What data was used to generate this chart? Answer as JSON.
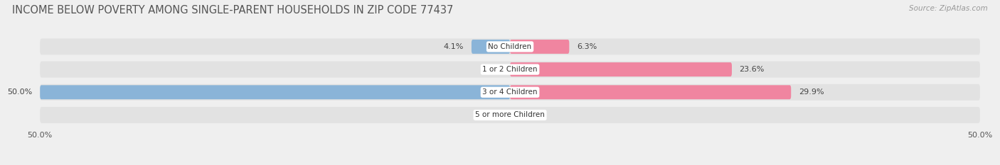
{
  "title": "INCOME BELOW POVERTY AMONG SINGLE-PARENT HOUSEHOLDS IN ZIP CODE 77437",
  "source": "Source: ZipAtlas.com",
  "categories": [
    "No Children",
    "1 or 2 Children",
    "3 or 4 Children",
    "5 or more Children"
  ],
  "single_father": [
    4.1,
    0.0,
    50.0,
    0.0
  ],
  "single_mother": [
    6.3,
    23.6,
    29.9,
    0.0
  ],
  "father_color": "#8ab4d8",
  "mother_color": "#f085a0",
  "father_color_light": "#b8d0e8",
  "mother_color_light": "#f8b8c8",
  "xlim_left": -50,
  "xlim_right": 50,
  "x_tick_labels": [
    "50.0%",
    "50.0%"
  ],
  "bg_color": "#efefef",
  "row_bg_color": "#e2e2e2",
  "row_bg_color2": "#d8d8d8",
  "white": "#ffffff",
  "title_fontsize": 10.5,
  "bar_height": 0.62,
  "label_fontsize": 8,
  "category_fontsize": 7.5,
  "legend_fontsize": 8,
  "source_fontsize": 7.5,
  "tick_fontsize": 8
}
